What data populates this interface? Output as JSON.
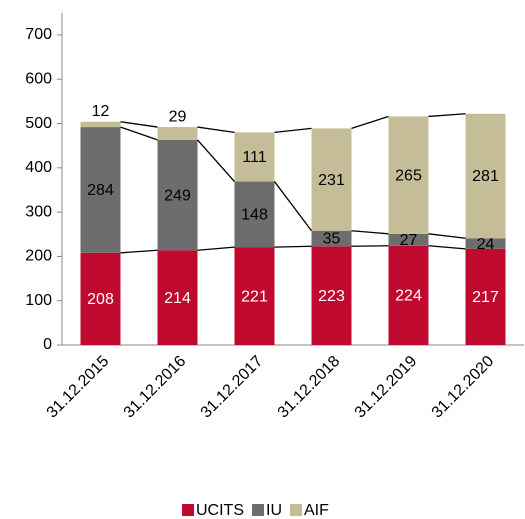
{
  "chart_data": {
    "type": "stacked_bar",
    "categories": [
      "31.12.2015",
      "31.12.2016",
      "31.12.2017",
      "31.12.2018",
      "31.12.2019",
      "31.12.2020"
    ],
    "series": [
      {
        "name": "UCITS",
        "color": "#c0092f",
        "values": [
          208,
          214,
          221,
          223,
          224,
          217
        ]
      },
      {
        "name": "IU",
        "color": "#6d6d6d",
        "values": [
          284,
          249,
          148,
          35,
          27,
          24
        ]
      },
      {
        "name": "AIF",
        "color": "#c5bd98",
        "values": [
          12,
          29,
          111,
          231,
          265,
          281
        ]
      }
    ],
    "ylim": [
      0,
      750
    ],
    "yticks": [
      0,
      100,
      200,
      300,
      400,
      500,
      600,
      700
    ],
    "legend": "bottom"
  }
}
